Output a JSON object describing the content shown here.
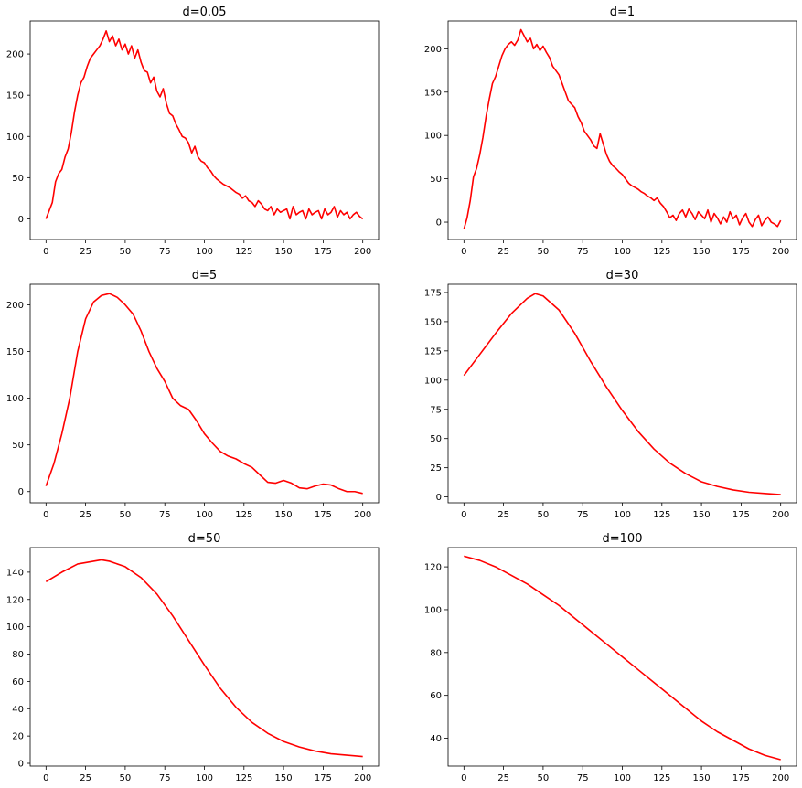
{
  "figure": {
    "line_color": "#ff0000"
  },
  "chart_data": [
    {
      "type": "line",
      "title": "d=0.05",
      "xlim": [
        -10,
        210
      ],
      "ylim": [
        -25,
        240
      ],
      "xticks": [
        0,
        25,
        50,
        75,
        100,
        125,
        150,
        175,
        200
      ],
      "yticks": [
        0,
        50,
        100,
        150,
        200
      ],
      "series": [
        {
          "x": [
            0,
            2,
            4,
            6,
            8,
            10,
            12,
            14,
            16,
            18,
            20,
            22,
            24,
            26,
            28,
            30,
            32,
            34,
            36,
            38,
            40,
            42,
            44,
            46,
            48,
            50,
            52,
            54,
            56,
            58,
            60,
            62,
            64,
            66,
            68,
            70,
            72,
            74,
            76,
            78,
            80,
            82,
            84,
            86,
            88,
            90,
            92,
            94,
            96,
            98,
            100,
            102,
            104,
            106,
            108,
            110,
            112,
            114,
            116,
            118,
            120,
            122,
            124,
            126,
            128,
            130,
            132,
            134,
            136,
            138,
            140,
            142,
            144,
            146,
            148,
            150,
            152,
            154,
            156,
            158,
            160,
            162,
            164,
            166,
            168,
            170,
            172,
            174,
            176,
            178,
            180,
            182,
            184,
            186,
            188,
            190,
            192,
            194,
            196,
            198,
            200
          ],
          "y": [
            0,
            10,
            20,
            45,
            55,
            60,
            75,
            85,
            105,
            130,
            150,
            165,
            172,
            185,
            195,
            200,
            205,
            210,
            218,
            228,
            215,
            222,
            210,
            218,
            205,
            212,
            200,
            210,
            195,
            205,
            190,
            180,
            178,
            165,
            172,
            155,
            148,
            158,
            140,
            128,
            125,
            115,
            108,
            100,
            98,
            92,
            80,
            88,
            75,
            70,
            68,
            62,
            58,
            52,
            48,
            45,
            42,
            40,
            38,
            35,
            32,
            30,
            25,
            28,
            22,
            20,
            15,
            22,
            18,
            12,
            10,
            15,
            5,
            12,
            8,
            10,
            12,
            0,
            15,
            5,
            8,
            10,
            0,
            12,
            5,
            8,
            10,
            0,
            12,
            5,
            8,
            15,
            2,
            10,
            5,
            8,
            0,
            5,
            8,
            3,
            0
          ]
        }
      ]
    },
    {
      "type": "line",
      "title": "d=1",
      "xlim": [
        -10,
        210
      ],
      "ylim": [
        -20,
        232
      ],
      "xticks": [
        0,
        25,
        50,
        75,
        100,
        125,
        150,
        175,
        200
      ],
      "yticks": [
        0,
        50,
        100,
        150,
        200
      ],
      "series": [
        {
          "x": [
            0,
            2,
            4,
            6,
            8,
            10,
            12,
            14,
            16,
            18,
            20,
            22,
            24,
            26,
            28,
            30,
            32,
            34,
            36,
            38,
            40,
            42,
            44,
            46,
            48,
            50,
            52,
            54,
            56,
            58,
            60,
            62,
            64,
            66,
            68,
            70,
            72,
            74,
            76,
            78,
            80,
            82,
            84,
            86,
            88,
            90,
            92,
            94,
            96,
            98,
            100,
            102,
            104,
            106,
            108,
            110,
            112,
            114,
            116,
            118,
            120,
            122,
            124,
            126,
            128,
            130,
            132,
            134,
            136,
            138,
            140,
            142,
            144,
            146,
            148,
            150,
            152,
            154,
            156,
            158,
            160,
            162,
            164,
            166,
            168,
            170,
            172,
            174,
            176,
            178,
            180,
            182,
            184,
            186,
            188,
            190,
            192,
            194,
            196,
            198,
            200
          ],
          "y": [
            -8,
            5,
            25,
            52,
            62,
            78,
            98,
            122,
            142,
            160,
            168,
            180,
            192,
            200,
            205,
            208,
            204,
            210,
            222,
            215,
            208,
            212,
            200,
            205,
            198,
            203,
            196,
            190,
            180,
            175,
            170,
            160,
            150,
            140,
            136,
            132,
            122,
            115,
            105,
            100,
            95,
            88,
            85,
            102,
            90,
            78,
            70,
            65,
            62,
            58,
            55,
            50,
            45,
            42,
            40,
            38,
            35,
            33,
            30,
            28,
            25,
            28,
            22,
            18,
            12,
            5,
            8,
            2,
            10,
            14,
            6,
            15,
            10,
            3,
            12,
            8,
            4,
            14,
            0,
            10,
            5,
            -2,
            6,
            0,
            12,
            4,
            8,
            -3,
            5,
            10,
            0,
            -5,
            3,
            8,
            -4,
            2,
            6,
            0,
            -2,
            -5,
            2
          ]
        }
      ]
    },
    {
      "type": "line",
      "title": "d=5",
      "xlim": [
        -10,
        210
      ],
      "ylim": [
        -12,
        222
      ],
      "xticks": [
        0,
        25,
        50,
        75,
        100,
        125,
        150,
        175,
        200
      ],
      "yticks": [
        0,
        50,
        100,
        150,
        200
      ],
      "series": [
        {
          "x": [
            0,
            5,
            10,
            15,
            20,
            25,
            30,
            35,
            40,
            45,
            50,
            55,
            60,
            65,
            70,
            75,
            80,
            85,
            90,
            95,
            100,
            105,
            110,
            115,
            120,
            125,
            130,
            135,
            140,
            145,
            150,
            155,
            160,
            165,
            170,
            175,
            180,
            185,
            190,
            195,
            200
          ],
          "y": [
            6,
            30,
            62,
            100,
            150,
            185,
            203,
            210,
            212,
            208,
            200,
            190,
            172,
            150,
            132,
            118,
            100,
            92,
            88,
            76,
            62,
            52,
            43,
            38,
            35,
            30,
            26,
            18,
            10,
            9,
            12,
            9,
            4,
            3,
            6,
            8,
            7,
            3,
            0,
            0,
            -2
          ]
        }
      ]
    },
    {
      "type": "line",
      "title": "d=30",
      "xlim": [
        -10,
        210
      ],
      "ylim": [
        -5,
        182
      ],
      "xticks": [
        0,
        25,
        50,
        75,
        100,
        125,
        150,
        175,
        200
      ],
      "yticks": [
        0,
        25,
        50,
        75,
        100,
        125,
        150,
        175
      ],
      "series": [
        {
          "x": [
            0,
            10,
            20,
            30,
            40,
            45,
            50,
            60,
            70,
            80,
            90,
            100,
            110,
            120,
            130,
            140,
            150,
            160,
            170,
            180,
            190,
            200
          ],
          "y": [
            104,
            122,
            140,
            157,
            170,
            174,
            172,
            160,
            140,
            116,
            94,
            74,
            56,
            41,
            29,
            20,
            13,
            9,
            6,
            4,
            3,
            2
          ]
        }
      ]
    },
    {
      "type": "line",
      "title": "d=50",
      "xlim": [
        -10,
        210
      ],
      "ylim": [
        -2,
        158
      ],
      "xticks": [
        0,
        25,
        50,
        75,
        100,
        125,
        150,
        175,
        200
      ],
      "yticks": [
        0,
        20,
        40,
        60,
        80,
        100,
        120,
        140
      ],
      "series": [
        {
          "x": [
            0,
            10,
            20,
            30,
            35,
            40,
            50,
            60,
            70,
            80,
            90,
            100,
            110,
            120,
            130,
            140,
            150,
            160,
            170,
            180,
            190,
            200
          ],
          "y": [
            133,
            140,
            146,
            148,
            149,
            148,
            144,
            136,
            124,
            108,
            90,
            72,
            55,
            41,
            30,
            22,
            16,
            12,
            9,
            7,
            6,
            5
          ]
        }
      ]
    },
    {
      "type": "line",
      "title": "d=100",
      "xlim": [
        -10,
        210
      ],
      "ylim": [
        27,
        129
      ],
      "xticks": [
        0,
        25,
        50,
        75,
        100,
        125,
        150,
        175,
        200
      ],
      "yticks": [
        40,
        60,
        80,
        100,
        120
      ],
      "series": [
        {
          "x": [
            0,
            10,
            20,
            30,
            40,
            50,
            60,
            70,
            80,
            90,
            100,
            110,
            120,
            130,
            140,
            150,
            160,
            170,
            180,
            190,
            200
          ],
          "y": [
            125,
            123,
            120,
            116,
            112,
            107,
            102,
            96,
            90,
            84,
            78,
            72,
            66,
            60,
            54,
            48,
            43,
            39,
            35,
            32,
            30
          ]
        }
      ]
    }
  ]
}
